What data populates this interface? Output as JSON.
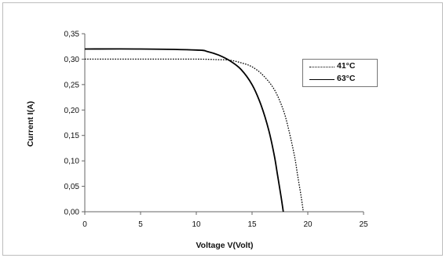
{
  "chart_data": {
    "type": "line",
    "title": "",
    "xlabel": "Voltage V(Volt)",
    "ylabel": "Current  I(A)",
    "xlim": [
      0,
      25
    ],
    "ylim": [
      0,
      0.35
    ],
    "x_ticks": [
      "0",
      "5",
      "10",
      "15",
      "20",
      "25"
    ],
    "y_ticks": [
      "0,00",
      "0,05",
      "0,10",
      "0,15",
      "0,20",
      "0,25",
      "0,30",
      "0,35"
    ],
    "grid": false,
    "legend_position": "top-right",
    "series": [
      {
        "name": "41°C",
        "style": "dotted",
        "color": "#000000",
        "x": [
          0,
          5,
          10,
          12,
          13,
          14,
          15,
          16,
          17,
          17.8,
          18.3,
          18.8,
          19.1,
          19.4,
          19.6
        ],
        "y": [
          0.3,
          0.3,
          0.3,
          0.299,
          0.298,
          0.293,
          0.285,
          0.268,
          0.24,
          0.2,
          0.16,
          0.11,
          0.07,
          0.03,
          0.0
        ]
      },
      {
        "name": "63°C",
        "style": "solid",
        "color": "#000000",
        "x": [
          0,
          5,
          10,
          11,
          12,
          13,
          14,
          15,
          15.8,
          16.5,
          17,
          17.3,
          17.6,
          17.8
        ],
        "y": [
          0.32,
          0.32,
          0.318,
          0.315,
          0.308,
          0.297,
          0.28,
          0.25,
          0.21,
          0.16,
          0.11,
          0.07,
          0.03,
          0.0
        ]
      }
    ]
  }
}
